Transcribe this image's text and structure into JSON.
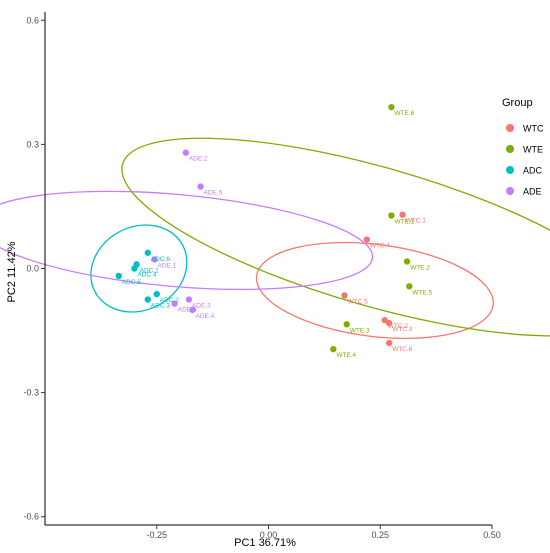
{
  "chart_data": {
    "type": "scatter",
    "xlabel": "PC1 36.71%",
    "ylabel": "PC2 11.42%",
    "xlim": [
      -0.5,
      0.5
    ],
    "ylim": [
      -0.62,
      0.62
    ],
    "x_ticks": [
      -0.25,
      0.0,
      0.25,
      0.5
    ],
    "x_tick_labels": [
      "-0.25",
      "0.00",
      "0.25",
      "0.50"
    ],
    "y_ticks": [
      -0.6,
      -0.3,
      0.0,
      0.3,
      0.6
    ],
    "y_tick_labels": [
      "-0.6",
      "-0.3",
      "0.0",
      "0.3",
      "0.6"
    ],
    "grid": false,
    "legend": {
      "title": "Group",
      "position": "right",
      "entries": [
        {
          "name": "WTC",
          "color": "#F8766D"
        },
        {
          "name": "WTE",
          "color": "#7CAE00"
        },
        {
          "name": "ADC",
          "color": "#00BFC4"
        },
        {
          "name": "ADE",
          "color": "#C77CFF"
        }
      ]
    },
    "series": [
      {
        "name": "WTC",
        "color": "#F8766D",
        "points": [
          {
            "label": "WTC.1",
            "x": 0.3,
            "y": 0.13
          },
          {
            "label": "WTC.4",
            "x": 0.22,
            "y": 0.07
          },
          {
            "label": "WTC.5",
            "x": 0.17,
            "y": -0.065
          },
          {
            "label": "WTC.2",
            "x": 0.26,
            "y": -0.125
          },
          {
            "label": "WTC.3",
            "x": 0.27,
            "y": -0.132
          },
          {
            "label": "WTC.6",
            "x": 0.27,
            "y": -0.18
          }
        ],
        "ellipse": {
          "center": [
            0.238,
            -0.053
          ],
          "rx": 0.103,
          "ry": 0.288,
          "angle_deg": 97
        }
      },
      {
        "name": "WTE",
        "color": "#7CAE00",
        "points": [
          {
            "label": "WTE.6",
            "x": 0.275,
            "y": 0.39
          },
          {
            "label": "WTE.1",
            "x": 0.275,
            "y": 0.128
          },
          {
            "label": "WTE.2",
            "x": 0.31,
            "y": 0.017
          },
          {
            "label": "WTE.5",
            "x": 0.315,
            "y": -0.043
          },
          {
            "label": "WTE.3",
            "x": 0.175,
            "y": -0.135
          },
          {
            "label": "WTE.4",
            "x": 0.145,
            "y": -0.195
          }
        ],
        "ellipse": {
          "center": [
            0.243,
            0.076
          ],
          "rx": 0.155,
          "ry": 0.64,
          "angle_deg": 106
        }
      },
      {
        "name": "ADC",
        "color": "#00BFC4",
        "points": [
          {
            "label": "ADC.6",
            "x": -0.27,
            "y": 0.038
          },
          {
            "label": "ADC.1",
            "x": -0.295,
            "y": 0.01
          },
          {
            "label": "ADC.4",
            "x": -0.3,
            "y": 0.0
          },
          {
            "label": "ADC.5",
            "x": -0.335,
            "y": -0.018
          },
          {
            "label": "ADC.2",
            "x": -0.25,
            "y": -0.062
          },
          {
            "label": "ADC.3",
            "x": -0.27,
            "y": -0.075
          }
        ],
        "ellipse": {
          "center": [
            -0.29,
            0.0
          ],
          "rx": 0.093,
          "ry": 0.12,
          "angle_deg": 62
        }
      },
      {
        "name": "ADE",
        "color": "#C77CFF",
        "points": [
          {
            "label": "ADE.2",
            "x": -0.185,
            "y": 0.28
          },
          {
            "label": "ADE.5",
            "x": -0.152,
            "y": 0.198
          },
          {
            "label": "ADE.1",
            "x": -0.255,
            "y": 0.022
          },
          {
            "label": "ADE.3",
            "x": -0.178,
            "y": -0.075
          },
          {
            "label": "ADE.6",
            "x": -0.21,
            "y": -0.085
          },
          {
            "label": "ADE.4",
            "x": -0.17,
            "y": -0.1
          }
        ],
        "ellipse": {
          "center": [
            -0.21,
            0.068
          ],
          "rx": 0.103,
          "ry": 0.48,
          "angle_deg": 95
        }
      }
    ]
  }
}
